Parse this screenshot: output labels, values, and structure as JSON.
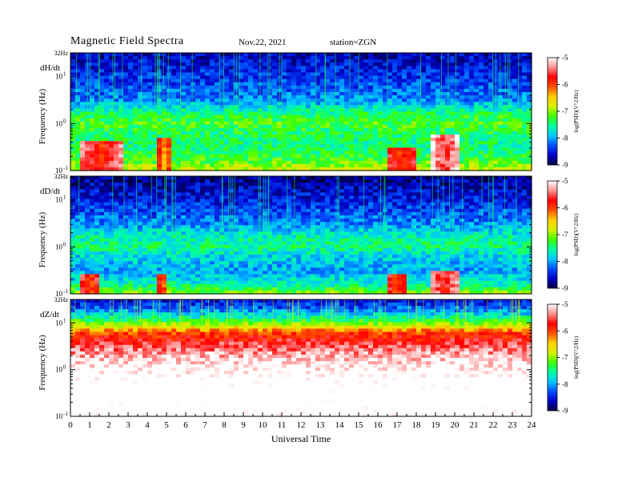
{
  "header": {
    "title": "Magnetic  Field  Spectra",
    "date": "Nov.22, 2021",
    "station": "station=ZGN"
  },
  "colors": {
    "scale": [
      "#000040",
      "#0000c8",
      "#0050ff",
      "#00c8ff",
      "#00ffa0",
      "#40ff00",
      "#d8f000",
      "#ffd000",
      "#ff5000",
      "#ff0000",
      "#ff9090",
      "#ffffff"
    ]
  },
  "chart_data": [
    {
      "type": "heatmap",
      "component": "dH/dt",
      "ylabel": "Frequency  (Hz)",
      "ytick_labels": [
        "32Hz",
        "10",
        "10",
        "10"
      ],
      "ytick_exponents": [
        "",
        "1",
        "0",
        "-1"
      ],
      "ylim": [
        0.1,
        32
      ],
      "yscale": "log",
      "x": [
        0,
        24
      ],
      "colorbar": {
        "label": "log(PSD)(V^2/Hz)",
        "range": [
          -9,
          -5
        ],
        "tick_labels": [
          "-5",
          "-6",
          "-7",
          "-8",
          "-9"
        ]
      },
      "profile": {
        "freq_log": [
          1.5,
          1.0,
          0.5,
          0.2,
          0.0,
          -0.2,
          -0.5,
          -0.8,
          -1.0
        ],
        "level": [
          -8.7,
          -8.4,
          -8.1,
          -7.4,
          -7.2,
          -7.4,
          -7.5,
          -7.2,
          -6.8
        ]
      },
      "events": [
        {
          "t": [
            0.4,
            2.8
          ],
          "f_log": [
            -1.0,
            -0.4
          ],
          "peak": -5.9
        },
        {
          "t": [
            4.6,
            5.2
          ],
          "f_log": [
            -1.0,
            -0.3
          ],
          "peak": -6.4
        },
        {
          "t": [
            16.5,
            18.0
          ],
          "f_log": [
            -1.0,
            -0.5
          ],
          "peak": -6.0
        },
        {
          "t": [
            18.8,
            20.2
          ],
          "f_log": [
            -1.0,
            -0.2
          ],
          "peak": -5.7
        }
      ]
    },
    {
      "type": "heatmap",
      "component": "dD/dt",
      "ylabel": "Frequency  (Hz)",
      "ytick_labels": [
        "32Hz",
        "10",
        "10",
        "10"
      ],
      "ytick_exponents": [
        "",
        "1",
        "0",
        "-1"
      ],
      "ylim": [
        0.1,
        32
      ],
      "yscale": "log",
      "x": [
        0,
        24
      ],
      "colorbar": {
        "label": "log(PSD)(V^2/Hz)",
        "range": [
          -9,
          -5
        ],
        "tick_labels": [
          "-5",
          "-6",
          "-7",
          "-8",
          "-9"
        ]
      },
      "profile": {
        "freq_log": [
          1.5,
          1.0,
          0.5,
          0.2,
          0.0,
          -0.2,
          -0.5,
          -0.8,
          -1.0
        ],
        "level": [
          -8.8,
          -8.5,
          -8.1,
          -7.6,
          -7.5,
          -7.8,
          -8.0,
          -7.6,
          -7.0
        ]
      },
      "events": [
        {
          "t": [
            0.5,
            1.6
          ],
          "f_log": [
            -1.0,
            -0.6
          ],
          "peak": -6.0
        },
        {
          "t": [
            4.6,
            5.0
          ],
          "f_log": [
            -1.0,
            -0.6
          ],
          "peak": -6.3
        },
        {
          "t": [
            16.6,
            17.4
          ],
          "f_log": [
            -1.0,
            -0.6
          ],
          "peak": -6.1
        },
        {
          "t": [
            18.8,
            20.2
          ],
          "f_log": [
            -1.0,
            -0.5
          ],
          "peak": -5.8
        }
      ]
    },
    {
      "type": "heatmap",
      "component": "dZ/dt",
      "ylabel": "Frequency  (Hz)",
      "ytick_labels": [
        "32Hz",
        "10",
        "10",
        "10"
      ],
      "ytick_exponents": [
        "",
        "1",
        "0",
        "-1"
      ],
      "ylim": [
        0.1,
        32
      ],
      "yscale": "log",
      "x": [
        0,
        24
      ],
      "xlabel": "Universal  Time",
      "xtick_labels": [
        "0",
        "1",
        "2",
        "3",
        "4",
        "5",
        "6",
        "7",
        "8",
        "9",
        "10",
        "11",
        "12",
        "13",
        "14",
        "15",
        "16",
        "17",
        "18",
        "19",
        "20",
        "21",
        "22",
        "23",
        "24"
      ],
      "colorbar": {
        "label": "log(PSD)(V^2/Hz)",
        "range": [
          -9,
          -5
        ],
        "tick_labels": [
          "-5",
          "-6",
          "-7",
          "-8",
          "-9"
        ]
      },
      "profile": {
        "freq_log": [
          1.5,
          1.3,
          1.1,
          0.95,
          0.8,
          0.5,
          0.2,
          -0.2,
          -0.6,
          -1.0
        ],
        "level": [
          -8.6,
          -8.2,
          -7.5,
          -6.9,
          -6.0,
          -5.5,
          -5.1,
          -4.8,
          -4.7,
          -4.8
        ]
      },
      "events": []
    }
  ]
}
